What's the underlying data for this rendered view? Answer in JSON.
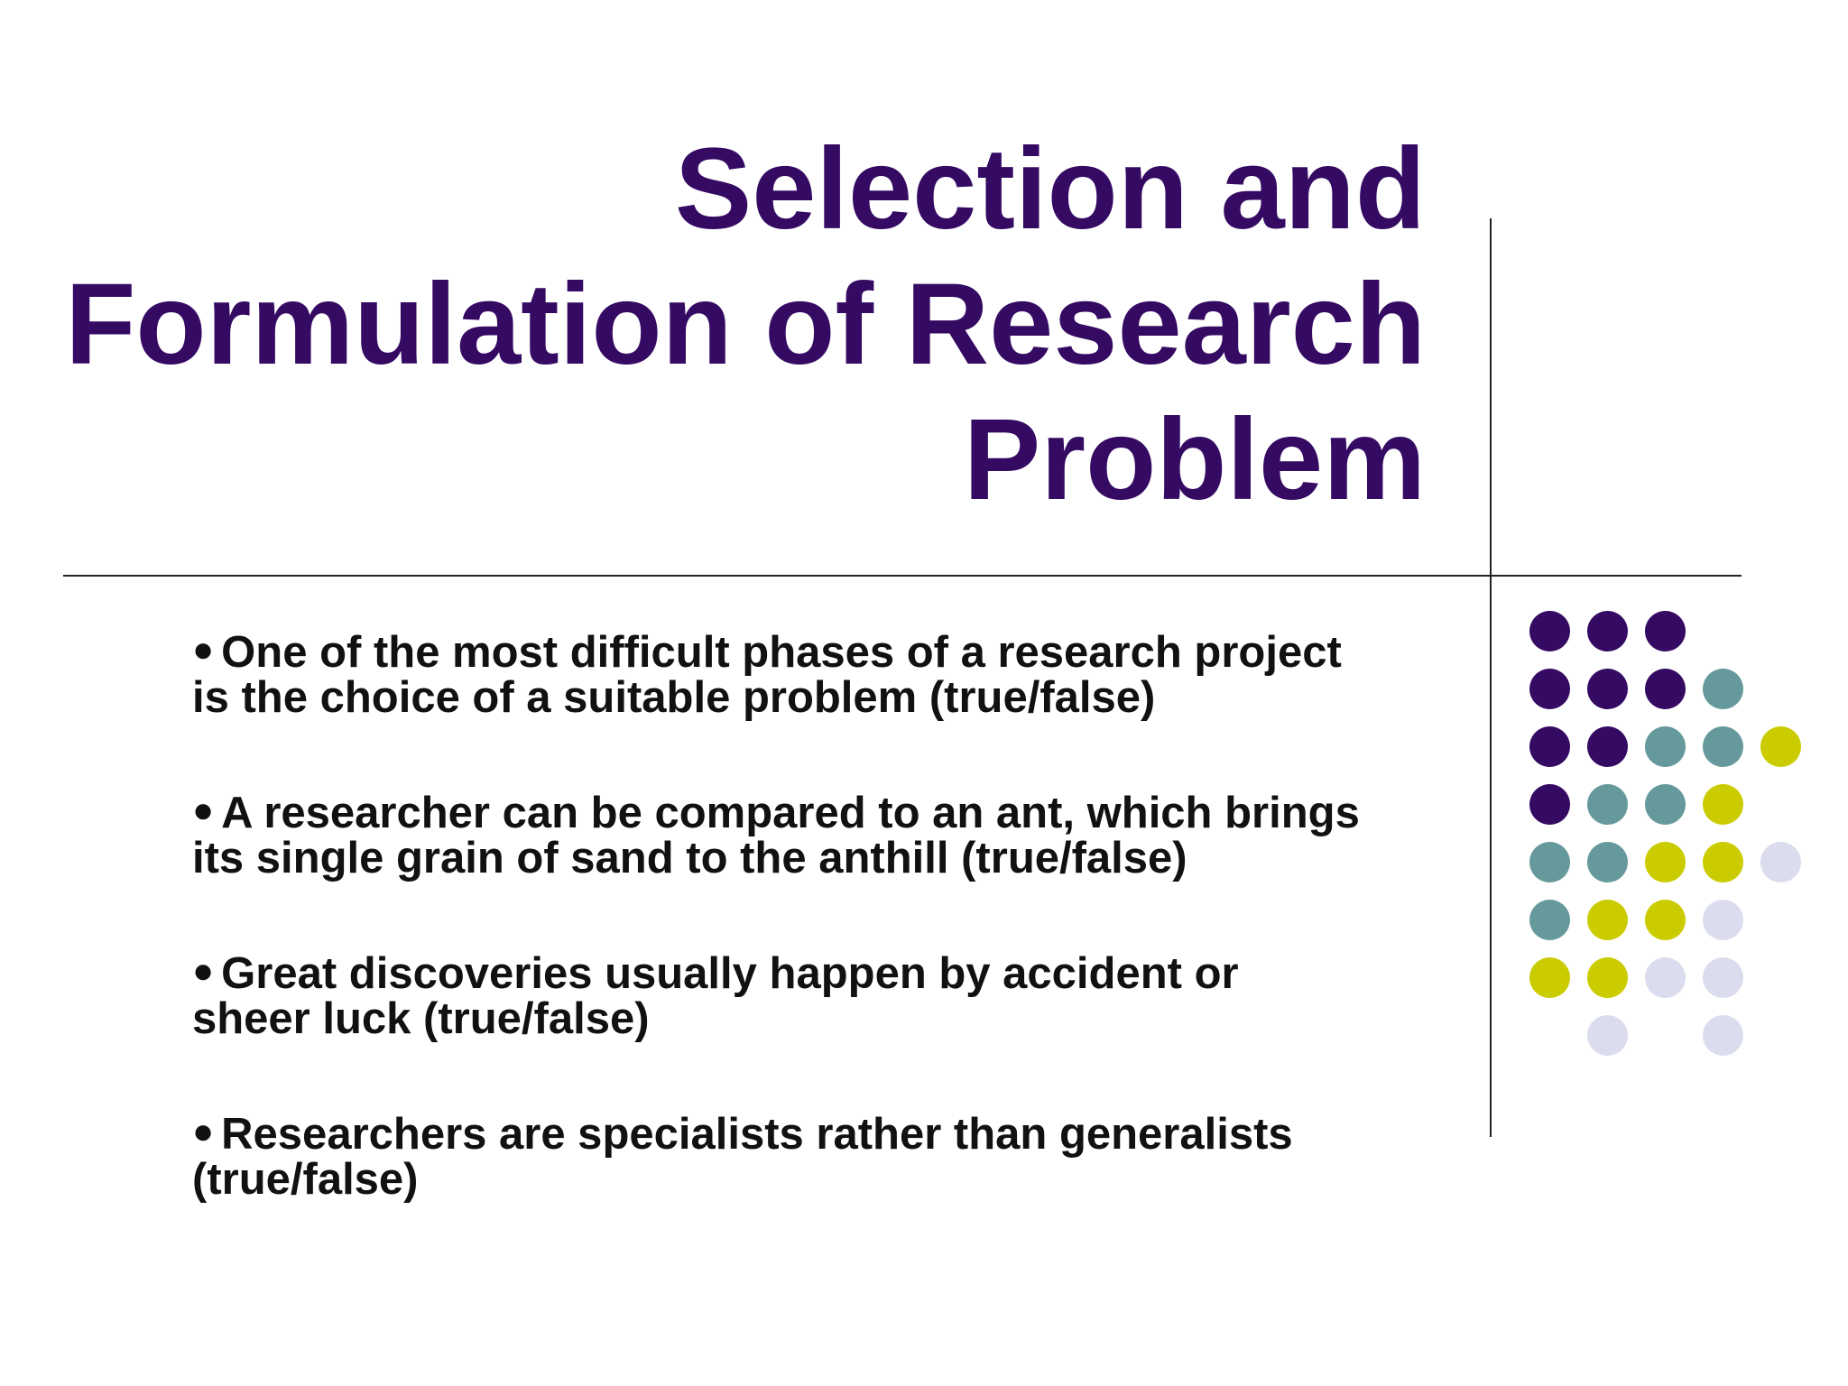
{
  "slide": {
    "title_lines": [
      "Selection and",
      "Formulation of Research",
      "Problem"
    ],
    "bullets": [
      {
        "line1": "One of the most difficult phases of a research project",
        "line2": "is the choice of a suitable problem (true/false)"
      },
      {
        "line1": "A researcher can be compared to an ant, which brings",
        "line2": "its single grain of sand to the anthill (true/false)"
      },
      {
        "line1": "Great discoveries usually happen by accident or",
        "line2": "sheer luck (true/false)"
      },
      {
        "line1": "Researchers are specialists rather than generalists",
        "line2": "(true/false)"
      }
    ]
  },
  "colors": {
    "title": "#350a63",
    "purple": "#350a63",
    "teal": "#66999b",
    "lime": "#cbcc00",
    "lavender": "#dcdcef"
  },
  "decoration": {
    "dot_grid_rows": [
      [
        "purple",
        "purple",
        "purple",
        null,
        null
      ],
      [
        "purple",
        "purple",
        "purple",
        "teal",
        null
      ],
      [
        "purple",
        "purple",
        "teal",
        "teal",
        "lime"
      ],
      [
        "purple",
        "teal",
        "teal",
        "lime",
        null
      ],
      [
        "teal",
        "teal",
        "lime",
        "lime",
        "lavender"
      ],
      [
        "teal",
        "lime",
        "lime",
        "lavender",
        null
      ],
      [
        "lime",
        "lime",
        "lavender",
        "lavender",
        null
      ],
      [
        null,
        "lavender",
        null,
        "lavender",
        null
      ]
    ]
  }
}
